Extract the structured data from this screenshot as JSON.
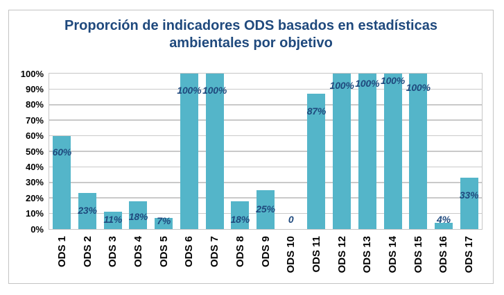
{
  "chart_data": {
    "type": "bar",
    "title": "Proporción de indicadores ODS basados en estadísticas ambientales por objetivo",
    "categories": [
      "ODS 1",
      "ODS 2",
      "ODS 3",
      "ODS 4",
      "ODS 5",
      "ODS 6",
      "ODS 7",
      "ODS 8",
      "ODS 9",
      "ODS 10",
      "ODS 11",
      "ODS 12",
      "ODS 13",
      "ODS 14",
      "ODS 15",
      "ODS 16",
      "ODS 17"
    ],
    "values": [
      60,
      23,
      11,
      18,
      7,
      100,
      100,
      18,
      25,
      0,
      87,
      100,
      100,
      100,
      100,
      4,
      33
    ],
    "data_labels": [
      "60%",
      "23%",
      "11%",
      "18%",
      "7%",
      "100%",
      "100%",
      "18%",
      "25%",
      "0",
      "87%",
      "100%",
      "100%",
      "100%",
      "100%",
      "4%",
      "33%"
    ],
    "y_ticks": [
      "0%",
      "10%",
      "20%",
      "30%",
      "40%",
      "50%",
      "60%",
      "70%",
      "80%",
      "90%",
      "100%"
    ],
    "ylim": [
      0,
      100
    ],
    "xlabel": "",
    "ylabel": "",
    "grid": true,
    "legend": "none",
    "label_dy": [
      15,
      17,
      3,
      14,
      -4,
      16,
      16,
      18,
      19,
      -22,
      17,
      9,
      6,
      2,
      12,
      -13,
      17
    ],
    "colors": {
      "bar": "#54B5C9",
      "data_label": "#1F497D",
      "title": "#1F497D",
      "axis_text": "#000000",
      "gridline": "#C9C9C9",
      "plot_border": "#C6C6C6",
      "frame_border": "#C3C3C3"
    }
  }
}
